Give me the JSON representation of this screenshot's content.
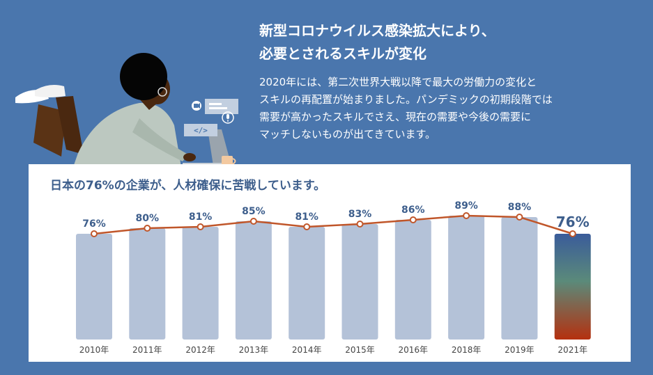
{
  "header": {
    "headline_lines": [
      "新型コロナウイルス感染拡大により、",
      "必要とされるスキルが変化"
    ],
    "body_lines": [
      "2020年には、第二次世界大戦以降で最大の労働力の変化と",
      "スキルの再配置が始まりました。パンデミックの初期段階では",
      "需要が高かったスキルでさえ、現在の需要や今後の需要に",
      "マッチしないものが出てきています。"
    ]
  },
  "illustration": {
    "icons": [
      "person-with-laptop",
      "video-camera-icon",
      "microphone-icon",
      "code-icon",
      "mug-icon"
    ],
    "code_tag": "</>"
  },
  "chart_data": {
    "type": "bar",
    "title": "日本の76%の企業が、人材確保に苦戦しています。",
    "categories": [
      "2010年",
      "2011年",
      "2012年",
      "2013年",
      "2014年",
      "2015年",
      "2016年",
      "2018年",
      "2019年",
      "2021年"
    ],
    "values": [
      76,
      80,
      81,
      85,
      81,
      83,
      86,
      89,
      88,
      76
    ],
    "labels": [
      "76%",
      "80%",
      "81%",
      "85%",
      "81%",
      "83%",
      "86%",
      "89%",
      "88%",
      "76%"
    ],
    "overlay_line": true,
    "highlight_index": 9,
    "colors": {
      "bar": "#b4c2d8",
      "line": "#c0562a",
      "label": "#3d5e8c",
      "highlight_top": "#3a5c9a",
      "highlight_mid": "#5b8a7a",
      "highlight_bottom": "#b5300f"
    }
  }
}
